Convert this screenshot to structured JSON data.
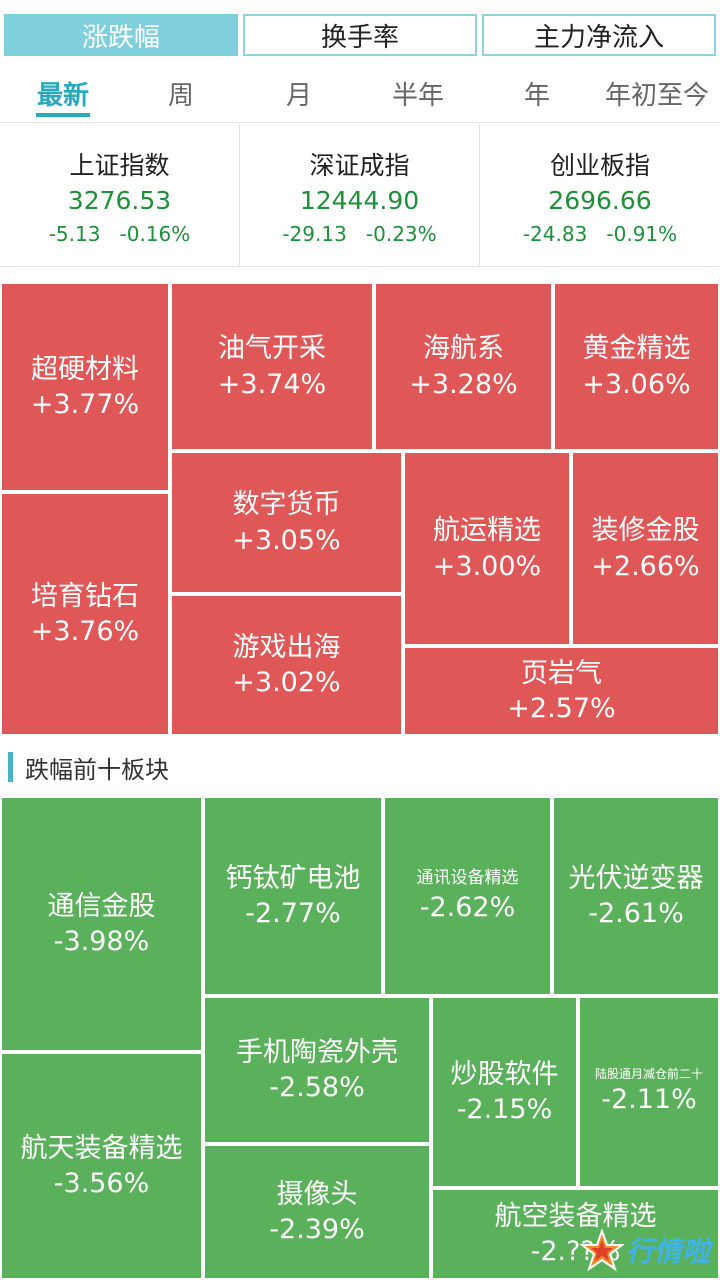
{
  "top_tabs": [
    "涨跌幅",
    "换手率",
    "主力净流入"
  ],
  "period_tabs": [
    "最新",
    "周",
    "月",
    "半年",
    "年",
    "年初至今"
  ],
  "indices": [
    {
      "name": "上证指数",
      "value": "3276.53",
      "change": "-5.13",
      "pct": "-0.16%"
    },
    {
      "name": "深证成指",
      "value": "12444.90",
      "change": "-29.13",
      "pct": "-0.23%"
    },
    {
      "name": "创业板指",
      "value": "2696.66",
      "change": "-24.83",
      "pct": "-0.91%"
    }
  ],
  "gainers": [
    {
      "name": "超硬材料",
      "pct": "+3.77%"
    },
    {
      "name": "油气开采",
      "pct": "+3.74%"
    },
    {
      "name": "海航系",
      "pct": "+3.28%"
    },
    {
      "name": "黄金精选",
      "pct": "+3.06%"
    },
    {
      "name": "数字货币",
      "pct": "+3.05%"
    },
    {
      "name": "航运精选",
      "pct": "+3.00%"
    },
    {
      "name": "装修金股",
      "pct": "+2.66%"
    },
    {
      "name": "培育钻石",
      "pct": "+3.76%"
    },
    {
      "name": "游戏出海",
      "pct": "+3.02%"
    },
    {
      "name": "页岩气",
      "pct": "+2.57%"
    }
  ],
  "losers_section_title": "跌幅前十板块",
  "losers": [
    {
      "name": "通信金股",
      "pct": "-3.98%"
    },
    {
      "name": "钙钛矿电池",
      "pct": "-2.77%"
    },
    {
      "name": "通讯设备精选",
      "pct": "-2.62%"
    },
    {
      "name": "光伏逆变器",
      "pct": "-2.61%"
    },
    {
      "name": "手机陶瓷外壳",
      "pct": "-2.58%"
    },
    {
      "name": "炒股软件",
      "pct": "-2.15%"
    },
    {
      "name": "陆股通月减仓前二十",
      "pct": "-2.11%"
    },
    {
      "name": "航天装备精选",
      "pct": "-3.56%"
    },
    {
      "name": "摄像头",
      "pct": "-2.39%"
    },
    {
      "name": "航空装备精选",
      "pct": "-2.??%"
    }
  ],
  "watermark": "行情啦",
  "colors": {
    "accent": "#2aa9bd",
    "up": "#df5757",
    "down": "#5bb15b",
    "index_green": "#1f8f3a"
  }
}
